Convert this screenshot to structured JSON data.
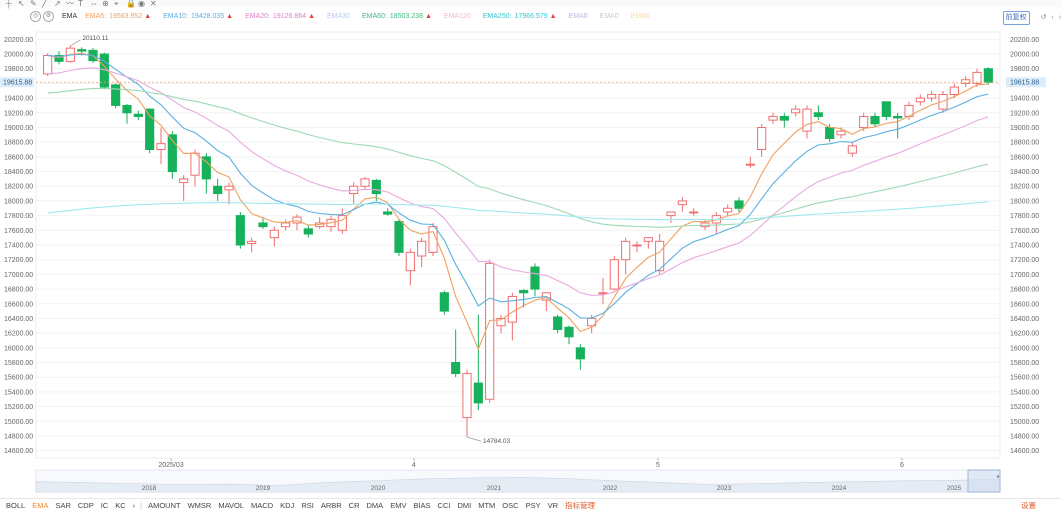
{
  "toolbar": {
    "icons": [
      "crosshair-icon",
      "cursor-icon",
      "pen-icon",
      "line-icon",
      "arrow-icon",
      "brush-icon",
      "text-icon",
      "measure-icon",
      "zoom-icon",
      "magnet-icon",
      "lock-icon",
      "eye-icon",
      "delete-icon"
    ]
  },
  "legend": {
    "indicator": "EMA",
    "items": [
      {
        "label": "EMA5:",
        "value": "19563.952",
        "color": "#f0a060",
        "arrow": "▲"
      },
      {
        "label": "EMA10:",
        "value": "19428.035",
        "color": "#5ab0e0",
        "arrow": "▲"
      },
      {
        "label": "EMA20:",
        "value": "19126.864",
        "color": "#e080c8",
        "arrow": "▲"
      },
      {
        "label": "EMA30",
        "value": "",
        "color": "#b8c8e8",
        "arrow": ""
      },
      {
        "label": "EMA60:",
        "value": "18503.238",
        "color": "#3cba80",
        "arrow": "▲"
      },
      {
        "label": "EMA120",
        "value": "",
        "color": "#f0b8c8",
        "arrow": ""
      },
      {
        "label": "EMA250:",
        "value": "17966.579",
        "color": "#30c8d0",
        "arrow": "▲"
      },
      {
        "label": "EMA0",
        "value": "",
        "color": "#b8b8d8",
        "arrow": ""
      },
      {
        "label": "EMA0",
        "value": "",
        "color": "#c8c8e0",
        "arrow": ""
      },
      {
        "label": "EMA0",
        "value": "",
        "color": "#f0d8b0",
        "arrow": ""
      }
    ]
  },
  "header_right": {
    "adjust": "前复权"
  },
  "tabs": {
    "items": [
      "BOLL",
      "EMA",
      "SAR",
      "CDP",
      "IC",
      "KC",
      "›",
      "AMOUNT",
      "WMSR",
      "MAVOL",
      "MACD",
      "KDJ",
      "RSI",
      "ARBR",
      "CR",
      "DMA",
      "EMV",
      "BIAS",
      "CCI",
      "DMI",
      "MTM",
      "OSC",
      "PSY",
      "VR",
      "指标管理"
    ],
    "active": "EMA",
    "settings": "设置"
  },
  "chart_data": {
    "type": "candlestick",
    "yticks": [
      20200,
      20000,
      19800,
      19600,
      19400,
      19200,
      19000,
      18800,
      18600,
      18400,
      18200,
      18000,
      17800,
      17600,
      17400,
      17200,
      17000,
      16800,
      16600,
      16400,
      16200,
      16000,
      15800,
      15600,
      15400,
      15200,
      15000,
      14800,
      14600
    ],
    "ylim": [
      14500,
      20300
    ],
    "current_price": 19615.88,
    "current_price_label": "19615.88",
    "high_label": "20110.11",
    "low_label": "14784.03",
    "xticks": [
      "2025/03",
      "4",
      "5",
      "6"
    ],
    "overview_years": [
      "2018",
      "2019",
      "2020",
      "2021",
      "2022",
      "2023",
      "2024",
      "2025"
    ],
    "candles": [
      [
        19730,
        19980,
        19700,
        20010
      ],
      [
        19980,
        19900,
        19860,
        20040
      ],
      [
        19900,
        20080,
        19880,
        20110.11
      ],
      [
        20060,
        20040,
        19980,
        20090
      ],
      [
        20050,
        19910,
        19880,
        20080
      ],
      [
        20000,
        19550,
        19520,
        20020
      ],
      [
        19580,
        19300,
        19260,
        19600
      ],
      [
        19300,
        19200,
        19050,
        19320
      ],
      [
        19180,
        19150,
        19100,
        19230
      ],
      [
        19250,
        18700,
        18650,
        19260
      ],
      [
        18700,
        18780,
        18500,
        19000
      ],
      [
        18900,
        18400,
        18300,
        18950
      ],
      [
        18250,
        18300,
        18000,
        18350
      ],
      [
        18350,
        18650,
        18200,
        18700
      ],
      [
        18600,
        18300,
        18100,
        18650
      ],
      [
        18200,
        18100,
        18000,
        18300
      ],
      [
        18150,
        18200,
        17950,
        18250
      ],
      [
        17800,
        17400,
        17350,
        17850
      ],
      [
        17420,
        17450,
        17300,
        17500
      ],
      [
        17700,
        17650,
        17620,
        17780
      ],
      [
        17500,
        17600,
        17380,
        17650
      ],
      [
        17650,
        17700,
        17600,
        17750
      ],
      [
        17700,
        17780,
        17600,
        17820
      ],
      [
        17620,
        17550,
        17500,
        17680
      ],
      [
        17650,
        17700,
        17620,
        17780
      ],
      [
        17650,
        17750,
        17580,
        17800
      ],
      [
        17600,
        17800,
        17550,
        17900
      ],
      [
        18100,
        18200,
        17950,
        18250
      ],
      [
        18200,
        18300,
        18150,
        18330
      ],
      [
        18280,
        18100,
        18000,
        18300
      ],
      [
        17850,
        17820,
        17800,
        17900
      ],
      [
        17720,
        17300,
        17250,
        17750
      ],
      [
        17050,
        17300,
        16850,
        17350
      ],
      [
        17250,
        17450,
        17100,
        17500
      ],
      [
        17300,
        17650,
        17250,
        17700
      ],
      [
        16750,
        16500,
        16450,
        16780
      ],
      [
        15800,
        15650,
        15600,
        16250
      ],
      [
        15050,
        15650,
        14784.03,
        15700
      ],
      [
        15520,
        15250,
        15150,
        16450
      ],
      [
        15300,
        17150,
        15250,
        17200
      ],
      [
        16300,
        16400,
        16200,
        16450
      ],
      [
        16350,
        16700,
        16100,
        16750
      ],
      [
        16780,
        16750,
        16550,
        16800
      ],
      [
        17100,
        16800,
        16700,
        17150
      ],
      [
        16650,
        16750,
        16500,
        16700
      ],
      [
        16420,
        16250,
        16200,
        16450
      ],
      [
        16280,
        16150,
        16050,
        16300
      ],
      [
        16000,
        15850,
        15700,
        16050
      ],
      [
        16300,
        16400,
        16200,
        16450
      ],
      [
        16750,
        16750,
        16600,
        16950
      ],
      [
        16800,
        17200,
        16780,
        17250
      ],
      [
        17200,
        17450,
        17000,
        17500
      ],
      [
        17400,
        17400,
        17300,
        17450
      ],
      [
        17450,
        17500,
        17350,
        17500
      ],
      [
        17050,
        17450,
        17000,
        17550
      ],
      [
        17800,
        17850,
        17700,
        17850
      ],
      [
        17950,
        18000,
        17850,
        18050
      ],
      [
        17850,
        17850,
        17800,
        17900
      ],
      [
        17650,
        17700,
        17600,
        17750
      ],
      [
        17700,
        17800,
        17550,
        17850
      ],
      [
        17850,
        17900,
        17800,
        17950
      ],
      [
        18000,
        17900,
        17850,
        18050
      ],
      [
        18500,
        18500,
        18450,
        18600
      ],
      [
        18700,
        19000,
        18600,
        19050
      ],
      [
        19100,
        19150,
        19050,
        19200
      ],
      [
        19150,
        19100,
        19000,
        19200
      ],
      [
        19200,
        19250,
        19150,
        19300
      ],
      [
        18950,
        19250,
        18850,
        19300
      ],
      [
        19200,
        19150,
        19100,
        19300
      ],
      [
        19000,
        18850,
        18800,
        19050
      ],
      [
        18900,
        18950,
        18850,
        19000
      ],
      [
        18650,
        18750,
        18600,
        18800
      ],
      [
        19000,
        19150,
        18950,
        19200
      ],
      [
        19150,
        19050,
        19000,
        19200
      ],
      [
        19350,
        19150,
        19100,
        19350
      ],
      [
        19150,
        19130,
        18850,
        19200
      ],
      [
        19150,
        19300,
        19100,
        19350
      ],
      [
        19350,
        19400,
        19300,
        19450
      ],
      [
        19400,
        19450,
        19350,
        19500
      ],
      [
        19250,
        19450,
        19200,
        19500
      ],
      [
        19450,
        19550,
        19400,
        19600
      ],
      [
        19600,
        19650,
        19550,
        19700
      ],
      [
        19600,
        19750,
        19550,
        19800
      ],
      [
        19800,
        19615.88,
        19580,
        19820
      ]
    ]
  }
}
